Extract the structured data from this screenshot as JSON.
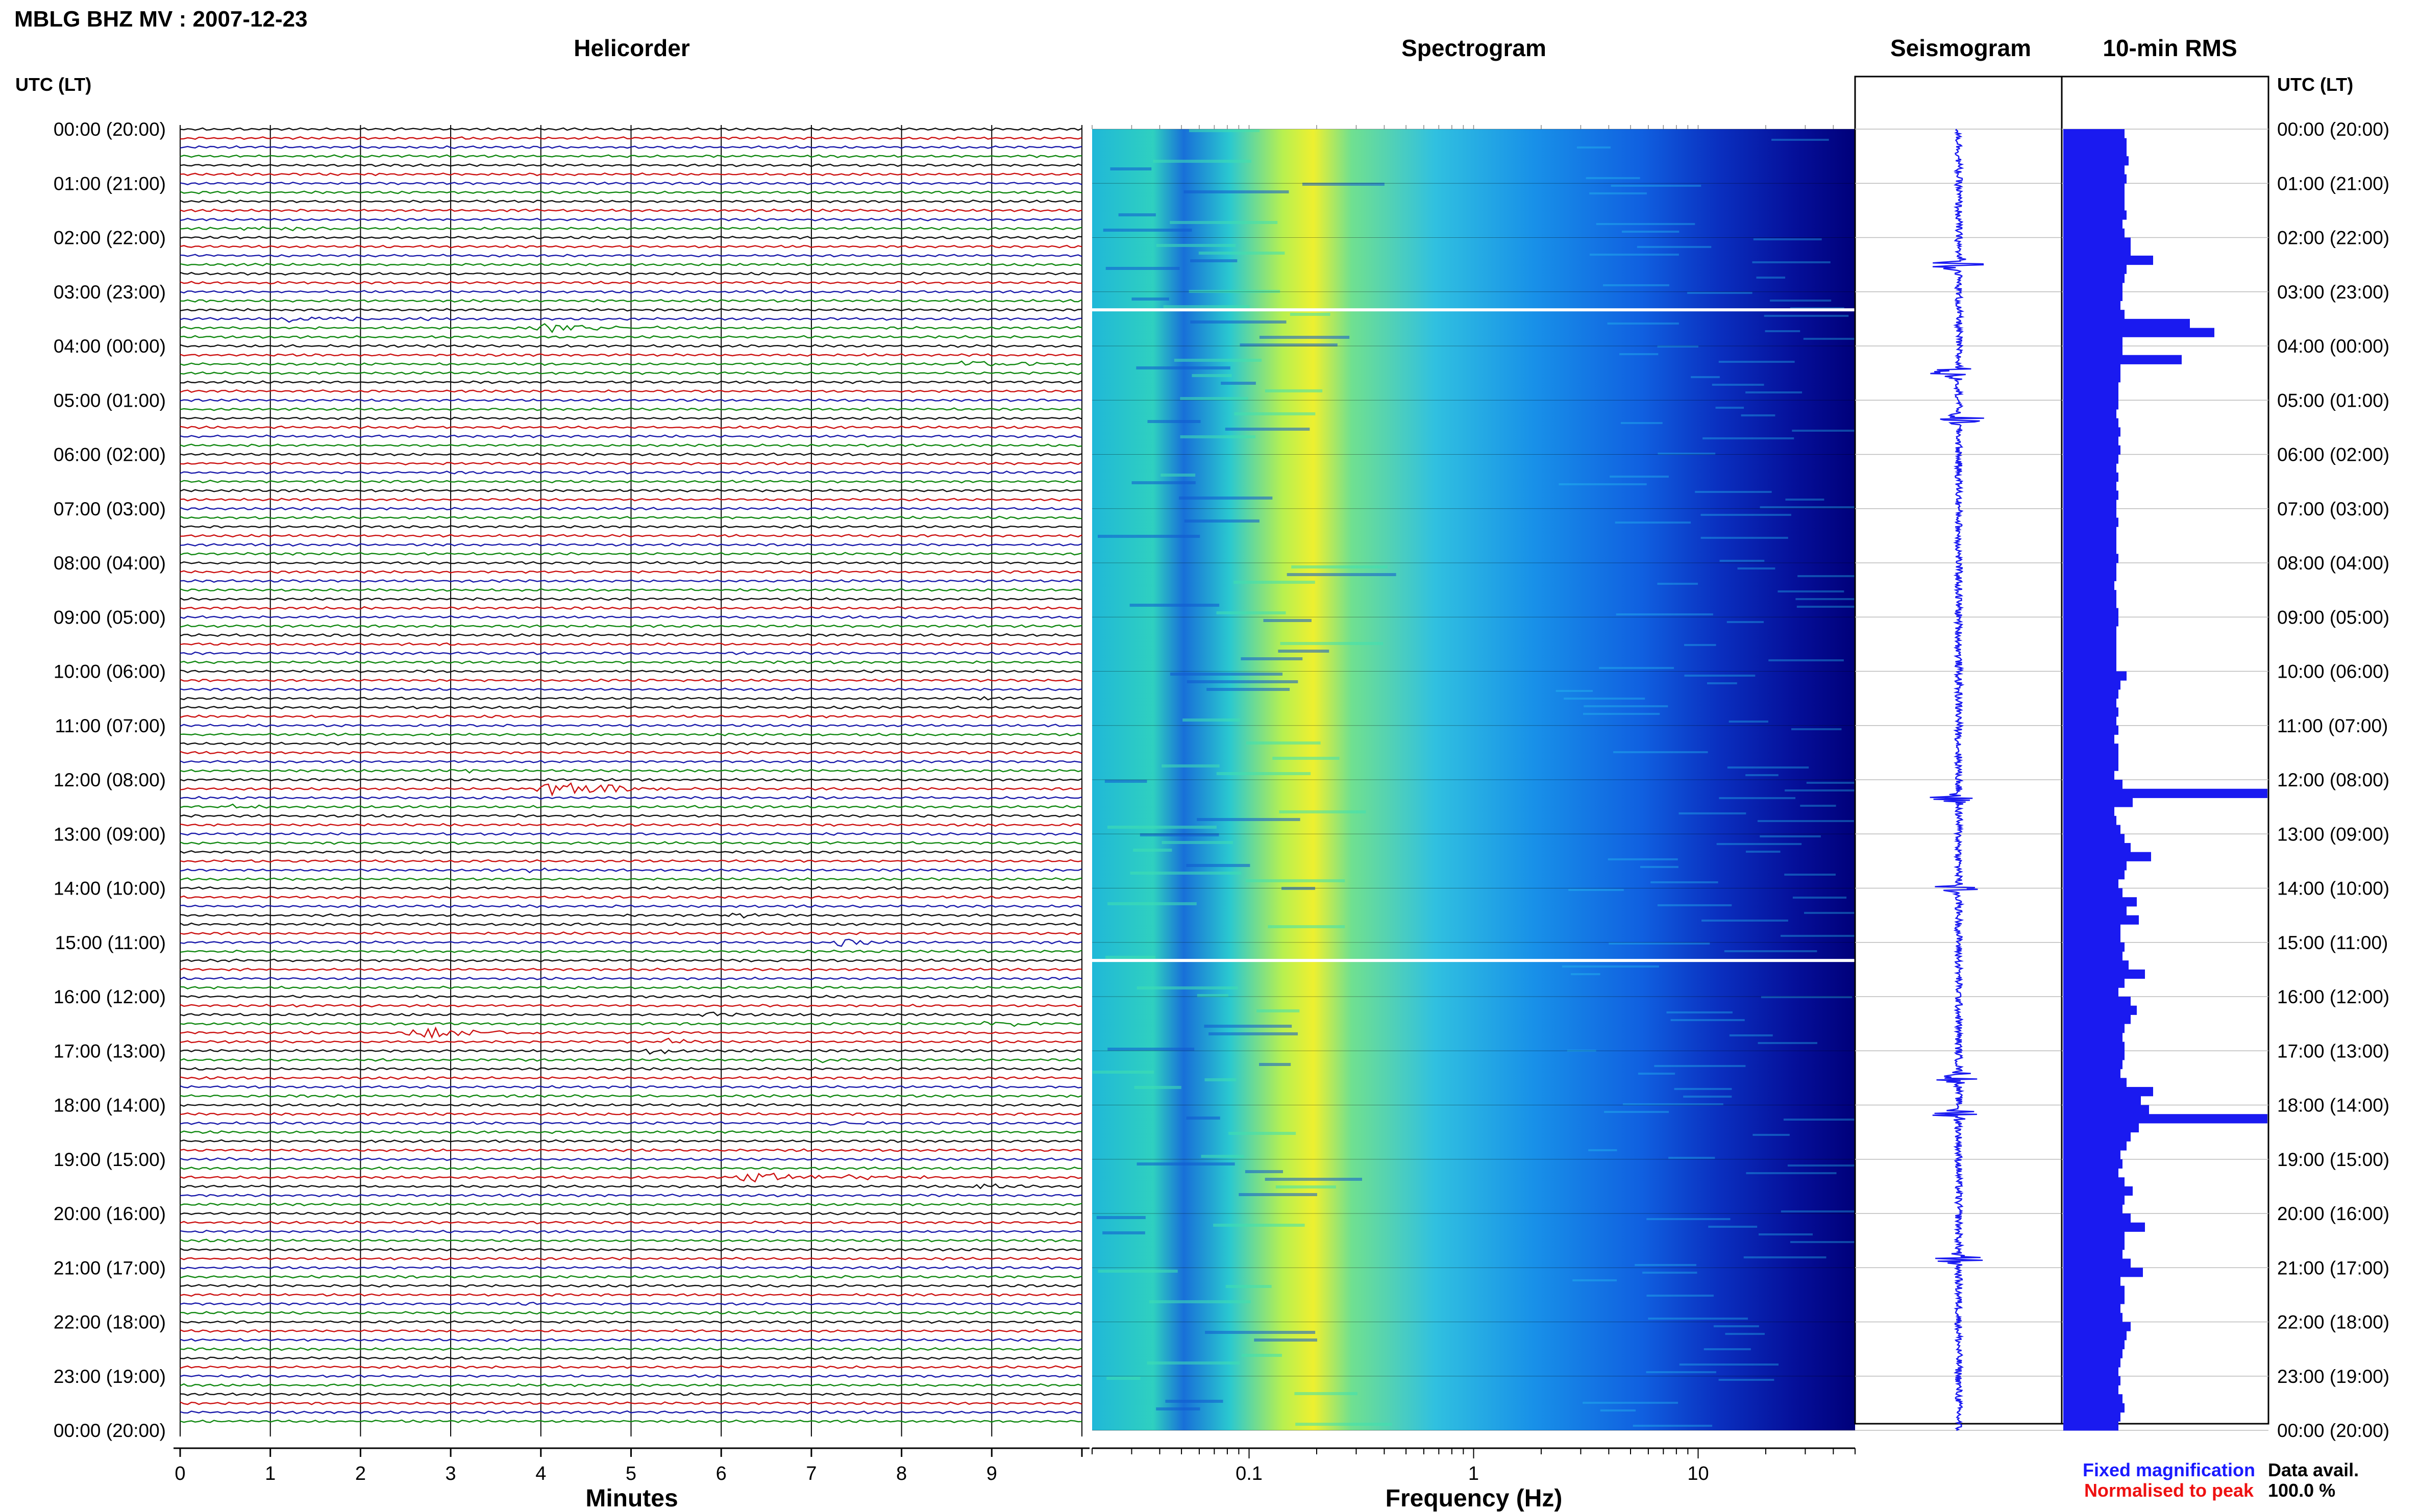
{
  "title": "MBLG BHZ MV : 2007-12-23",
  "panels": {
    "helicorder": "Helicorder",
    "spectrogram": "Spectrogram",
    "seismogram": "Seismogram",
    "rms": "10-min RMS"
  },
  "time_axis": {
    "label": "UTC (LT)",
    "ticks": [
      "00:00 (20:00)",
      "01:00 (21:00)",
      "02:00 (22:00)",
      "03:00 (23:00)",
      "04:00 (00:00)",
      "05:00 (01:00)",
      "06:00 (02:00)",
      "07:00 (03:00)",
      "08:00 (04:00)",
      "09:00 (05:00)",
      "10:00 (06:00)",
      "11:00 (07:00)",
      "12:00 (08:00)",
      "13:00 (09:00)",
      "14:00 (10:00)",
      "15:00 (11:00)",
      "16:00 (12:00)",
      "17:00 (13:00)",
      "18:00 (14:00)",
      "19:00 (15:00)",
      "20:00 (16:00)",
      "21:00 (17:00)",
      "22:00 (18:00)",
      "23:00 (19:00)",
      "00:00 (20:00)"
    ]
  },
  "legend": {
    "fixed": "Fixed magnification",
    "fixed_color": "#1a1aff",
    "normalised": "Normalised to peak",
    "normalised_color": "#ee1111"
  },
  "data_availability": {
    "label": "Data avail.",
    "value": "100.0 %"
  },
  "colors": {
    "trace_cycle": [
      "#111111",
      "#cc1111",
      "#1a1aaa",
      "#118811"
    ],
    "rms_bar": "#1a1af0",
    "seismogram": "#1a1af0",
    "spectrogram_low": "#00007a",
    "spectrogram_high": "#ffff00"
  },
  "chart_data": [
    {
      "type": "line",
      "title": "Helicorder",
      "xlabel": "Minutes",
      "x_ticks": [
        0,
        1,
        2,
        3,
        4,
        5,
        6,
        7,
        8,
        9
      ],
      "xlim": [
        0,
        10
      ],
      "rows": 144,
      "row_minutes": 10,
      "events": [
        {
          "row": 11,
          "start": 0.45,
          "dur": 1.3,
          "amp": 6,
          "color": 3
        },
        {
          "row": 12,
          "start": 8.3,
          "dur": 1.0,
          "amp": 2,
          "color": 0
        },
        {
          "row": 21,
          "start": 1.0,
          "dur": 1.8,
          "amp": 7,
          "color": 2
        },
        {
          "row": 22,
          "start": 3.8,
          "dur": 1.6,
          "amp": 9,
          "color": 3
        },
        {
          "row": 26,
          "start": 8.5,
          "dur": 1.5,
          "amp": 7,
          "color": 3
        },
        {
          "row": 59,
          "start": 5.8,
          "dur": 2.8,
          "amp": 2,
          "color": 3
        },
        {
          "row": 63,
          "start": 8.5,
          "dur": 1.5,
          "amp": 3,
          "color": 0
        },
        {
          "row": 71,
          "start": 3.0,
          "dur": 0.6,
          "amp": 3,
          "color": 3
        },
        {
          "row": 73,
          "start": 3.8,
          "dur": 2.0,
          "amp": 14,
          "color": 1
        },
        {
          "row": 75,
          "start": 0.5,
          "dur": 0.5,
          "amp": 7,
          "color": 3
        },
        {
          "row": 81,
          "start": 0.7,
          "dur": 1.2,
          "amp": 2,
          "color": 1
        },
        {
          "row": 82,
          "start": 3.8,
          "dur": 0.8,
          "amp": 8,
          "color": 2
        },
        {
          "row": 87,
          "start": 6.0,
          "dur": 0.8,
          "amp": 7,
          "color": 0
        },
        {
          "row": 90,
          "start": 7.2,
          "dur": 0.7,
          "amp": 8,
          "color": 2
        },
        {
          "row": 98,
          "start": 5.7,
          "dur": 0.6,
          "amp": 7,
          "color": 0
        },
        {
          "row": 99,
          "start": 8.8,
          "dur": 1.3,
          "amp": 6,
          "color": 3
        },
        {
          "row": 100,
          "start": 2.4,
          "dur": 1.6,
          "amp": 11,
          "color": 1
        },
        {
          "row": 101,
          "start": 5.3,
          "dur": 0.6,
          "amp": 7,
          "color": 1
        },
        {
          "row": 102,
          "start": 5.1,
          "dur": 0.7,
          "amp": 6,
          "color": 0
        },
        {
          "row": 103,
          "start": 7.0,
          "dur": 0.8,
          "amp": 4,
          "color": 3
        },
        {
          "row": 110,
          "start": 7.1,
          "dur": 0.6,
          "amp": 7,
          "color": 2
        },
        {
          "row": 114,
          "start": 0.5,
          "dur": 0.8,
          "amp": 4,
          "color": 2
        },
        {
          "row": 116,
          "start": 6.0,
          "dur": 2.5,
          "amp": 8,
          "color": 1
        },
        {
          "row": 117,
          "start": 8.7,
          "dur": 0.7,
          "amp": 7,
          "color": 0
        },
        {
          "row": 130,
          "start": 3.7,
          "dur": 0.5,
          "amp": 3,
          "color": 2
        },
        {
          "row": 131,
          "start": 6.3,
          "dur": 0.5,
          "amp": 3,
          "color": 3
        }
      ]
    },
    {
      "type": "heatmap",
      "title": "Spectrogram",
      "xlabel": "Frequency (Hz)",
      "x_scale": "log",
      "xlim": [
        0.02,
        50
      ],
      "x_ticks": [
        0.1,
        1,
        10
      ],
      "gaps_utc": [
        "03:20",
        "15:20"
      ]
    },
    {
      "type": "line",
      "title": "Seismogram",
      "x_ticks": [],
      "events_utc": [
        "02:30",
        "04:30",
        "05:20",
        "12:20",
        "14:00",
        "17:30",
        "18:10",
        "20:50"
      ]
    },
    {
      "type": "bar",
      "title": "10-min RMS",
      "x_ticks": [],
      "xlim": [
        0,
        100
      ],
      "values": [
        30,
        31,
        31,
        32,
        30,
        31,
        30,
        30,
        30,
        31,
        29,
        30,
        33,
        33,
        44,
        31,
        30,
        29,
        29,
        28,
        30,
        62,
        74,
        29,
        29,
        58,
        28,
        28,
        27,
        27,
        27,
        26,
        27,
        28,
        27,
        28,
        27,
        26,
        27,
        26,
        27,
        26,
        26,
        27,
        26,
        26,
        26,
        27,
        26,
        26,
        25,
        26,
        26,
        27,
        27,
        26,
        26,
        26,
        26,
        26,
        31,
        28,
        27,
        26,
        27,
        26,
        27,
        25,
        27,
        27,
        27,
        25,
        29,
        100,
        34,
        25,
        26,
        28,
        30,
        33,
        43,
        31,
        30,
        27,
        29,
        36,
        31,
        37,
        28,
        28,
        30,
        29,
        32,
        40,
        30,
        27,
        33,
        36,
        33,
        30,
        29,
        30,
        30,
        29,
        28,
        31,
        44,
        38,
        42,
        100,
        37,
        33,
        31,
        28,
        29,
        27,
        30,
        34,
        30,
        29,
        33,
        40,
        30,
        30,
        29,
        33,
        39,
        28,
        30,
        30,
        28,
        29,
        33,
        31,
        30,
        29,
        28,
        27,
        28,
        27,
        29,
        30,
        28,
        27
      ],
      "note_values": "percent of panel width"
    }
  ]
}
